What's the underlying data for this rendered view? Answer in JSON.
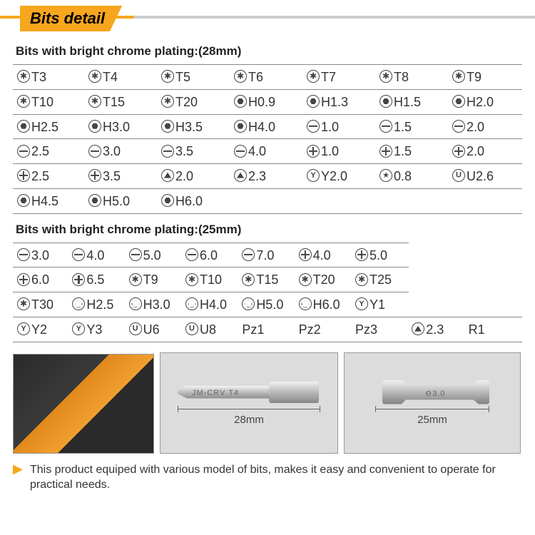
{
  "colors": {
    "accent": "#f7a61e",
    "text": "#333333",
    "border": "#888888",
    "icon": "#444444",
    "bg": "#ffffff"
  },
  "header_title": "Bits detail",
  "section1_title": "Bits with bright chrome plating:(28mm)",
  "section2_title": "Bits with bright chrome plating:(25mm)",
  "bit_types": {
    "tx": "torx-star",
    "hx": "hex-filled",
    "ho": "hex-outline",
    "sl": "slotted",
    "ph": "phillips",
    "tr": "triangle",
    "yy": "y-triwing",
    "pl": "pentalobe-star",
    "uu": "u-spanner",
    "none": "no-icon"
  },
  "table1": [
    [
      {
        "i": "tx",
        "l": "T3"
      },
      {
        "i": "tx",
        "l": "T4"
      },
      {
        "i": "tx",
        "l": "T5"
      },
      {
        "i": "tx",
        "l": "T6"
      },
      {
        "i": "tx",
        "l": "T7"
      },
      {
        "i": "tx",
        "l": "T8"
      },
      {
        "i": "tx",
        "l": "T9"
      }
    ],
    [
      {
        "i": "tx",
        "l": "T10"
      },
      {
        "i": "tx",
        "l": "T15"
      },
      {
        "i": "tx",
        "l": "T20"
      },
      {
        "i": "hx",
        "l": "H0.9"
      },
      {
        "i": "hx",
        "l": "H1.3"
      },
      {
        "i": "hx",
        "l": "H1.5"
      },
      {
        "i": "hx",
        "l": "H2.0"
      }
    ],
    [
      {
        "i": "hx",
        "l": "H2.5"
      },
      {
        "i": "hx",
        "l": "H3.0"
      },
      {
        "i": "hx",
        "l": "H3.5"
      },
      {
        "i": "hx",
        "l": "H4.0"
      },
      {
        "i": "sl",
        "l": "1.0"
      },
      {
        "i": "sl",
        "l": "1.5"
      },
      {
        "i": "sl",
        "l": "2.0"
      }
    ],
    [
      {
        "i": "sl",
        "l": "2.5"
      },
      {
        "i": "sl",
        "l": "3.0"
      },
      {
        "i": "sl",
        "l": "3.5"
      },
      {
        "i": "sl",
        "l": "4.0"
      },
      {
        "i": "ph",
        "l": "1.0"
      },
      {
        "i": "ph",
        "l": "1.5"
      },
      {
        "i": "ph",
        "l": "2.0"
      }
    ],
    [
      {
        "i": "ph",
        "l": "2.5"
      },
      {
        "i": "ph",
        "l": "3.5"
      },
      {
        "i": "tr",
        "l": "2.0"
      },
      {
        "i": "tr",
        "l": "2.3"
      },
      {
        "i": "yy",
        "l": "Y2.0"
      },
      {
        "i": "pl",
        "l": "0.8"
      },
      {
        "i": "uu",
        "l": "U2.6"
      }
    ],
    [
      {
        "i": "hx",
        "l": "H4.5"
      },
      {
        "i": "hx",
        "l": "H5.0"
      },
      {
        "i": "hx",
        "l": "H6.0"
      },
      {
        "i": "none",
        "l": ""
      },
      {
        "i": "none",
        "l": ""
      },
      {
        "i": "none",
        "l": ""
      },
      {
        "i": "none",
        "l": ""
      }
    ]
  ],
  "table2": [
    [
      {
        "i": "sl",
        "l": "3.0"
      },
      {
        "i": "sl",
        "l": "4.0"
      },
      {
        "i": "sl",
        "l": "5.0"
      },
      {
        "i": "sl",
        "l": "6.0"
      },
      {
        "i": "sl",
        "l": "7.0"
      },
      {
        "i": "ph",
        "l": "4.0"
      },
      {
        "i": "ph",
        "l": "5.0"
      }
    ],
    [
      {
        "i": "ph",
        "l": "6.0"
      },
      {
        "i": "ph",
        "l": "6.5"
      },
      {
        "i": "tx",
        "l": "T9"
      },
      {
        "i": "tx",
        "l": "T10"
      },
      {
        "i": "tx",
        "l": "T15"
      },
      {
        "i": "tx",
        "l": "T20"
      },
      {
        "i": "tx",
        "l": "T25"
      }
    ],
    [
      {
        "i": "tx",
        "l": "T30"
      },
      {
        "i": "ho",
        "l": "H2.5"
      },
      {
        "i": "ho",
        "l": "H3.0"
      },
      {
        "i": "ho",
        "l": "H4.0"
      },
      {
        "i": "ho",
        "l": "H5.0"
      },
      {
        "i": "ho",
        "l": "H6.0"
      },
      {
        "i": "yy",
        "l": "Y1"
      }
    ],
    [
      {
        "i": "yy",
        "l": "Y2"
      },
      {
        "i": "yy",
        "l": "Y3"
      },
      {
        "i": "uu",
        "l": "U6"
      },
      {
        "i": "uu",
        "l": "U8"
      },
      {
        "i": "none",
        "l": "Pz1"
      },
      {
        "i": "none",
        "l": "Pz2"
      },
      {
        "i": "none",
        "l": "Pz3"
      },
      {
        "i": "tr",
        "l": "2.3"
      },
      {
        "i": "none",
        "l": "R1"
      }
    ]
  ],
  "bit28_engraving": "JM-CRV T4",
  "bit28_dim_label": "28mm",
  "bit25_engraving": "⊖3.0",
  "bit25_dim_label": "25mm",
  "footer_text": "This product equiped with various model of bits, makes it easy and convenient to operate for practical needs."
}
